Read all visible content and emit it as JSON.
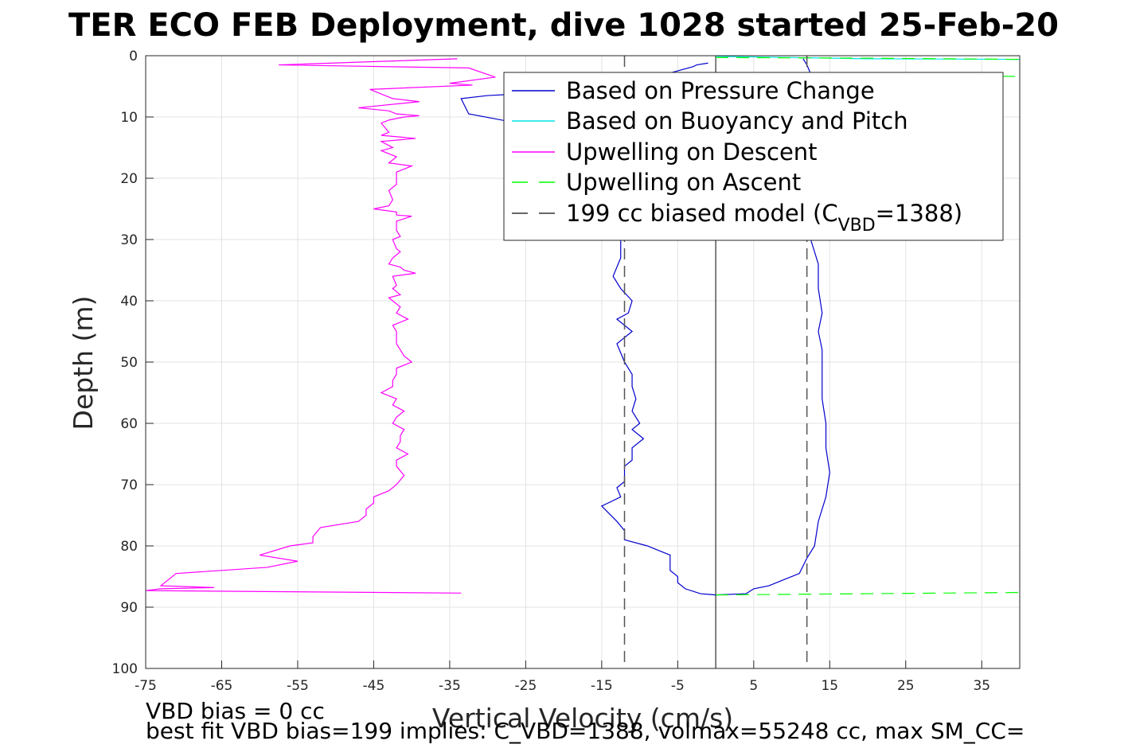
{
  "chart_data": {
    "type": "line",
    "title": "TER ECO FEB Deployment, dive 1028 started 25-Feb-20",
    "xlabel": "Vertical Velocity (cm/s)",
    "ylabel": "Depth (m)",
    "xlim": [
      -75,
      40
    ],
    "ylim": [
      100,
      0
    ],
    "y_reversed": true,
    "grid": true,
    "x_ticks": [
      -75,
      -65,
      -55,
      -45,
      -35,
      -25,
      -15,
      -5,
      5,
      15,
      25,
      35
    ],
    "y_ticks": [
      0,
      10,
      20,
      30,
      40,
      50,
      60,
      70,
      80,
      90,
      100
    ],
    "legend_position": "top-right",
    "series": [
      {
        "name": "Based on Pressure Change",
        "color": "#0000cd",
        "style": "solid",
        "points": [
          [
            -1,
            1.2
          ],
          [
            -2.5,
            1.5
          ],
          [
            -3,
            1.8
          ],
          [
            -8,
            3.5
          ],
          [
            -16,
            5.2
          ],
          [
            -22,
            6
          ],
          [
            -30,
            6.5
          ],
          [
            -33.5,
            7
          ],
          [
            -32.5,
            9.5
          ],
          [
            -26,
            11
          ],
          [
            -21,
            12.5
          ],
          [
            -17,
            15
          ],
          [
            -15,
            18
          ],
          [
            -13.5,
            21
          ],
          [
            -13,
            24
          ],
          [
            -13,
            27
          ],
          [
            -12.5,
            30
          ],
          [
            -12.5,
            33
          ],
          [
            -13.5,
            36
          ],
          [
            -12.5,
            38
          ],
          [
            -11,
            40
          ],
          [
            -11.5,
            42
          ],
          [
            -13,
            43
          ],
          [
            -11,
            45
          ],
          [
            -13,
            47
          ],
          [
            -12,
            50
          ],
          [
            -11,
            52
          ],
          [
            -11,
            54
          ],
          [
            -10.5,
            56
          ],
          [
            -11,
            58
          ],
          [
            -10,
            60
          ],
          [
            -11,
            61
          ],
          [
            -9.5,
            62.5
          ],
          [
            -11,
            64
          ],
          [
            -11,
            66
          ],
          [
            -12,
            67
          ],
          [
            -12,
            69.5
          ],
          [
            -13,
            70.5
          ],
          [
            -12.5,
            72
          ],
          [
            -15,
            73.5
          ],
          [
            -13,
            76
          ],
          [
            -12,
            77.5
          ],
          [
            -12,
            79
          ],
          [
            -9,
            80
          ],
          [
            -6,
            81.5
          ],
          [
            -6,
            84
          ],
          [
            -5,
            85
          ],
          [
            -5,
            86
          ],
          [
            -4,
            87
          ],
          [
            -2,
            87.8
          ],
          [
            0,
            88
          ],
          [
            4,
            87.8
          ],
          [
            5,
            87
          ],
          [
            7,
            86.5
          ],
          [
            9,
            85.5
          ],
          [
            11,
            84.5
          ],
          [
            12,
            82
          ],
          [
            13,
            80
          ],
          [
            13.5,
            76
          ],
          [
            14.5,
            72
          ],
          [
            15,
            68
          ],
          [
            14.5,
            64
          ],
          [
            14.5,
            60
          ],
          [
            14,
            56
          ],
          [
            14,
            52
          ],
          [
            14,
            48
          ],
          [
            13.5,
            45
          ],
          [
            14,
            42
          ],
          [
            13.5,
            38
          ],
          [
            13.5,
            34
          ],
          [
            12.5,
            30
          ],
          [
            12.5,
            26
          ],
          [
            12,
            22
          ],
          [
            12.5,
            18
          ],
          [
            13,
            14
          ],
          [
            12.5,
            10
          ],
          [
            12,
            6
          ],
          [
            12.5,
            3
          ],
          [
            12,
            1.5
          ],
          [
            11.5,
            0.5
          ]
        ]
      },
      {
        "name": "Based on Buoyancy and Pitch",
        "color": "#00e6e6",
        "style": "solid",
        "points": [
          [
            0,
            0.1
          ],
          [
            10,
            0.3
          ],
          [
            20,
            0.5
          ],
          [
            40,
            0.6
          ]
        ]
      },
      {
        "name": "Upwelling on Descent",
        "color": "#ff00ff",
        "style": "solid",
        "points": [
          [
            -34,
            0.5
          ],
          [
            -57.5,
            1.5
          ],
          [
            -32.5,
            2
          ],
          [
            -29,
            3.5
          ],
          [
            -35,
            4.5
          ],
          [
            -32,
            4.8
          ],
          [
            -45.5,
            5.5
          ],
          [
            -43.5,
            6.5
          ],
          [
            -42.5,
            7
          ],
          [
            -39,
            7.5
          ],
          [
            -47,
            8.5
          ],
          [
            -43,
            9
          ],
          [
            -42,
            9.5
          ],
          [
            -39,
            9.8
          ],
          [
            -41,
            10
          ],
          [
            -43,
            10.5
          ],
          [
            -44,
            11
          ],
          [
            -43,
            12.5
          ],
          [
            -44,
            13
          ],
          [
            -39.5,
            13.5
          ],
          [
            -44,
            14
          ],
          [
            -42.5,
            15
          ],
          [
            -44,
            15.5
          ],
          [
            -42,
            16.5
          ],
          [
            -43,
            17.5
          ],
          [
            -40,
            18
          ],
          [
            -42,
            19
          ],
          [
            -42,
            21
          ],
          [
            -43,
            22
          ],
          [
            -42.5,
            23.5
          ],
          [
            -43,
            24.5
          ],
          [
            -45,
            25
          ],
          [
            -42,
            25.5
          ],
          [
            -42,
            26
          ],
          [
            -40,
            26.2
          ],
          [
            -42,
            27
          ],
          [
            -42,
            28.5
          ],
          [
            -41.5,
            29.5
          ],
          [
            -42.5,
            30
          ],
          [
            -42,
            31.5
          ],
          [
            -41.5,
            32
          ],
          [
            -42.5,
            33
          ],
          [
            -43,
            34
          ],
          [
            -41.5,
            34.5
          ],
          [
            -41,
            35
          ],
          [
            -39.5,
            35.5
          ],
          [
            -42.5,
            36
          ],
          [
            -42,
            37.5
          ],
          [
            -42.5,
            38
          ],
          [
            -41.5,
            39
          ],
          [
            -43,
            39.5
          ],
          [
            -42.5,
            40
          ],
          [
            -41.5,
            41
          ],
          [
            -42,
            42
          ],
          [
            -40.5,
            43
          ],
          [
            -42.5,
            44
          ],
          [
            -42,
            45
          ],
          [
            -42,
            47
          ],
          [
            -41.5,
            48
          ],
          [
            -41,
            49
          ],
          [
            -40,
            50
          ],
          [
            -42,
            51
          ],
          [
            -42,
            52
          ],
          [
            -42.5,
            53
          ],
          [
            -42.5,
            54
          ],
          [
            -44,
            55
          ],
          [
            -42,
            56
          ],
          [
            -42.5,
            57
          ],
          [
            -41,
            58
          ],
          [
            -42,
            59
          ],
          [
            -42.5,
            60
          ],
          [
            -41,
            61
          ],
          [
            -41.5,
            62
          ],
          [
            -41.5,
            63
          ],
          [
            -42,
            64
          ],
          [
            -40.5,
            65
          ],
          [
            -42,
            66
          ],
          [
            -42,
            67
          ],
          [
            -41,
            68.5
          ],
          [
            -42,
            70
          ],
          [
            -43,
            71
          ],
          [
            -45,
            72
          ],
          [
            -45,
            73
          ],
          [
            -46,
            74
          ],
          [
            -46,
            75
          ],
          [
            -47,
            76
          ],
          [
            -52,
            77
          ],
          [
            -53,
            78.5
          ],
          [
            -53,
            79.5
          ],
          [
            -56,
            80
          ],
          [
            -60,
            81.5
          ],
          [
            -55,
            82.5
          ],
          [
            -59,
            83.5
          ],
          [
            -65,
            84
          ],
          [
            -71,
            84.5
          ],
          [
            -73,
            86.5
          ],
          [
            -66,
            86.8
          ],
          [
            -73,
            87
          ],
          [
            -75,
            87.3
          ],
          [
            -33.5,
            87.7
          ]
        ]
      },
      {
        "name": "Upwelling on Ascent",
        "color": "#00ff00",
        "style": "dashed",
        "points": [
          [
            0,
            0.3
          ],
          [
            20,
            0.4
          ],
          [
            40,
            0.6
          ],
          [
            0,
            88
          ],
          [
            20,
            87.8
          ],
          [
            40,
            87.6
          ],
          [
            35,
            3.3
          ],
          [
            40,
            3.4
          ]
        ]
      },
      {
        "name": "199 cc biased model (C_VBD=1388)",
        "color": "#555555",
        "style": "dashed",
        "lines": [
          [
            [
              -12,
              0
            ],
            [
              -12,
              100
            ]
          ],
          [
            [
              12,
              0
            ],
            [
              12,
              100
            ]
          ]
        ]
      }
    ],
    "zero_line": {
      "x": 0,
      "color": "#000000"
    }
  },
  "legend": {
    "entries": [
      {
        "text": "Based on Pressure Change",
        "color": "#0000cd",
        "dash": "none"
      },
      {
        "text": "Based on Buoyancy and Pitch",
        "color": "#00e6e6",
        "dash": "none"
      },
      {
        "text": "Upwelling on Descent",
        "color": "#ff00ff",
        "dash": "none"
      },
      {
        "text": "Upwelling on Ascent",
        "color": "#00ff00",
        "dash": "dash"
      },
      {
        "text_main": "199 cc biased model (C",
        "text_sub": "VBD",
        "text_tail": "=1388)",
        "color": "#333333",
        "dash": "dash"
      }
    ]
  },
  "footer": {
    "line1": "VBD bias = 0 cc",
    "line2": "best fit VBD bias=199 implies: C_VBD=1388, volmax=55248 cc, max SM_CC="
  }
}
